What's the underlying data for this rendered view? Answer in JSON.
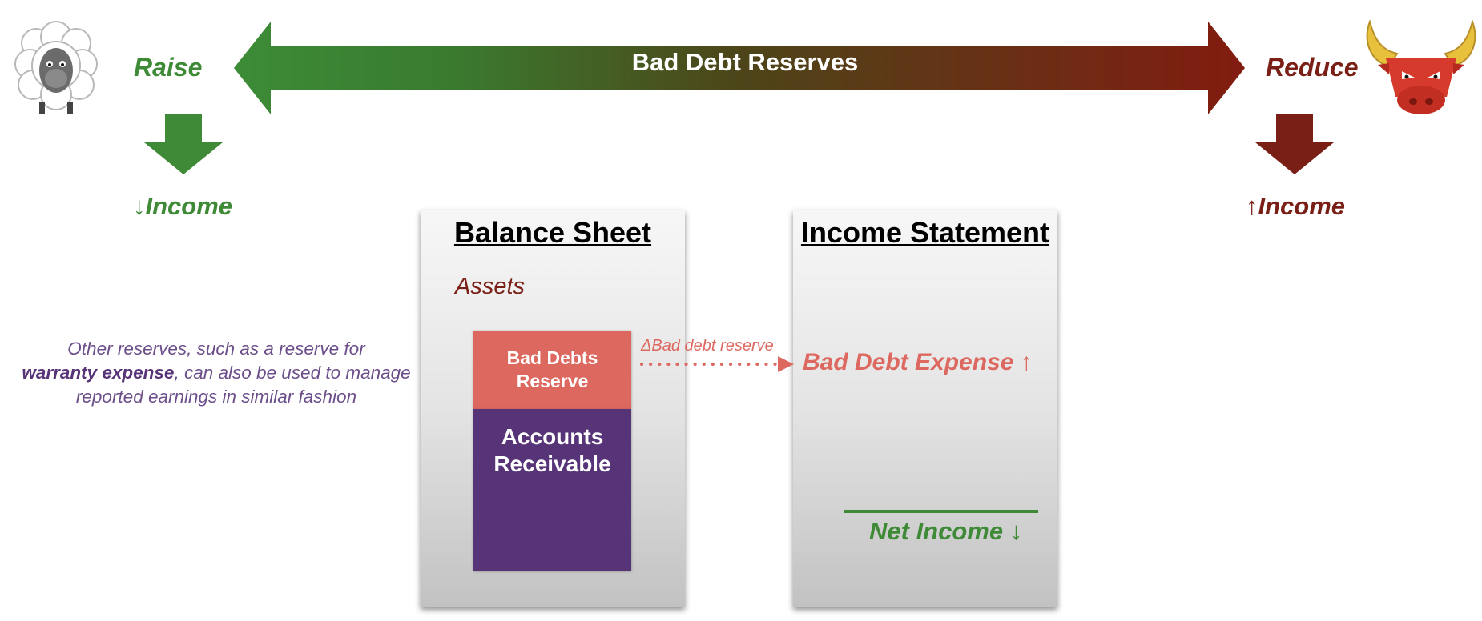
{
  "top_arrow": {
    "label": "Bad Debt Reserves"
  },
  "left": {
    "action": "Raise",
    "result": "↓Income",
    "mascot": "sheep-icon"
  },
  "right": {
    "action": "Reduce",
    "result": "↑Income",
    "mascot": "bull-icon"
  },
  "balance_sheet": {
    "title": "Balance Sheet",
    "section": "Assets",
    "reserve_box": "Bad Debts Reserve",
    "receivable_box": "Accounts Receivable"
  },
  "connector": {
    "label": "ΔBad debt reserve"
  },
  "income_statement": {
    "title": "Income Statement",
    "expense": "Bad Debt Expense ↑",
    "net_income": "Net Income ↓"
  },
  "note": {
    "before": "Other reserves, such as a reserve for",
    "emphasis": "warranty expense",
    "after": ", can also be used to manage reported earnings in similar fashion"
  },
  "colors": {
    "green": "#3f8a37",
    "dark_red": "#7a1f16",
    "coral": "#dd6860",
    "purple": "#573477"
  }
}
